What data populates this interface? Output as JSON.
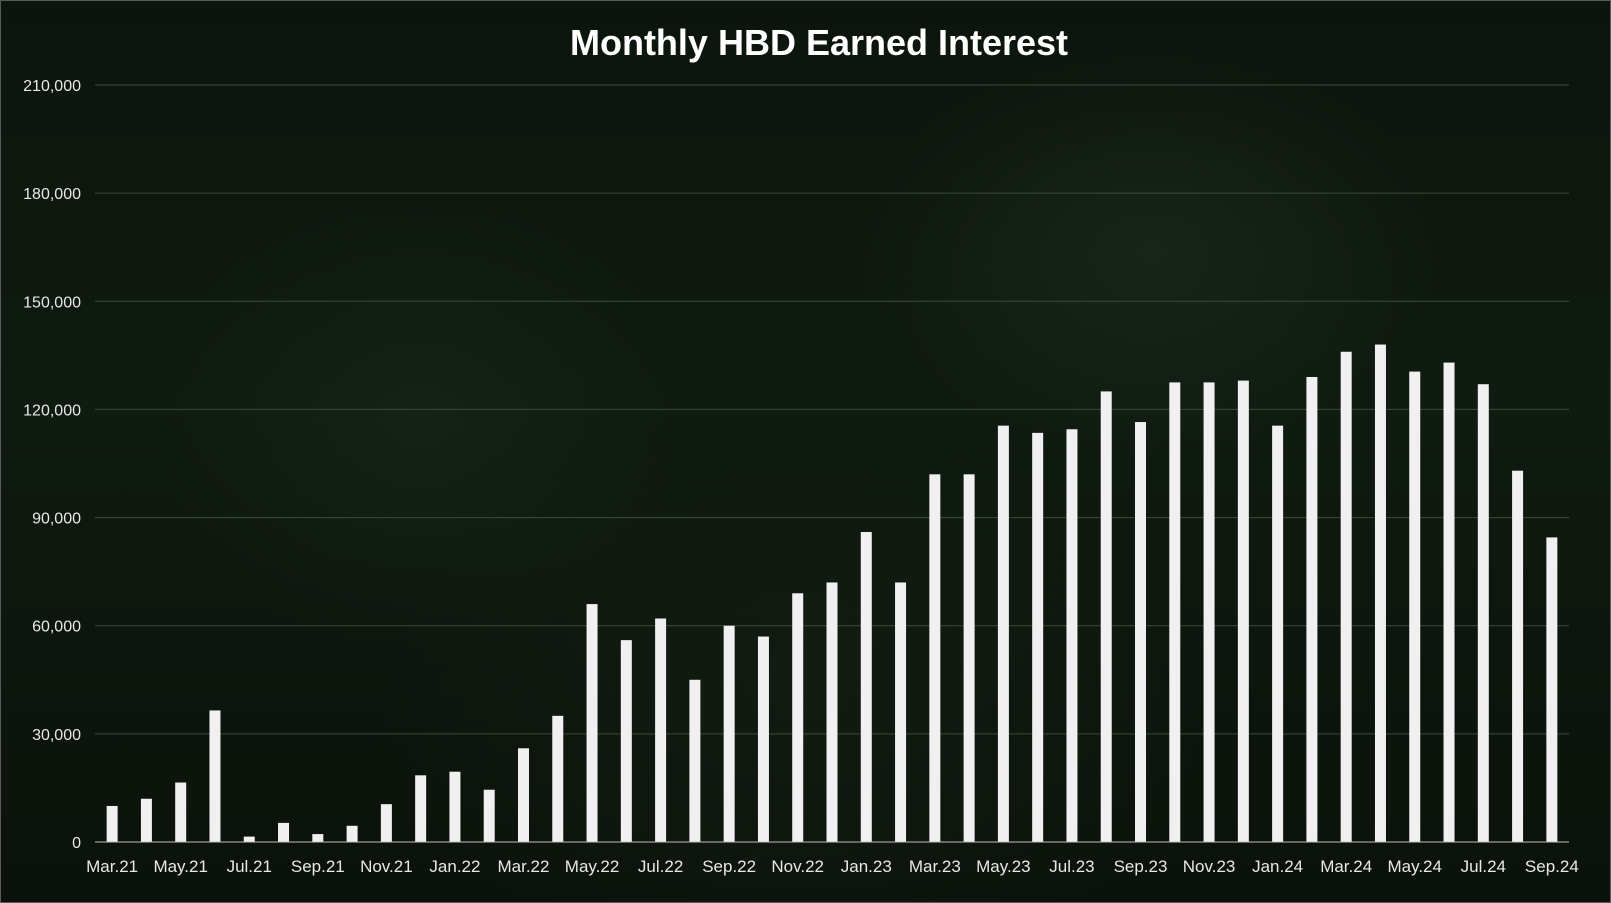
{
  "chart_data": {
    "type": "bar",
    "title": "Monthly HBD Earned Interest",
    "xlabel": "",
    "ylabel": "",
    "ylim": [
      0,
      210000
    ],
    "yticks": [
      0,
      30000,
      60000,
      90000,
      120000,
      150000,
      180000,
      210000
    ],
    "ytick_labels": [
      "0",
      "30,000",
      "60,000",
      "90,000",
      "120,000",
      "150,000",
      "180,000",
      "210,000"
    ],
    "grid": true,
    "legend": "none",
    "bar_color": "#f0f0f0",
    "categories": [
      "Mar.21",
      "Apr.21",
      "May.21",
      "Jun.21",
      "Jul.21",
      "Aug.21",
      "Sep.21",
      "Oct.21",
      "Nov.21",
      "Dec.21",
      "Jan.22",
      "Feb.22",
      "Mar.22",
      "Apr.22",
      "May.22",
      "Jun.22",
      "Jul.22",
      "Aug.22",
      "Sep.22",
      "Oct.22",
      "Nov.22",
      "Dec.22",
      "Jan.23",
      "Feb.23",
      "Mar.23",
      "Apr.23",
      "May.23",
      "Jun.23",
      "Jul.23",
      "Aug.23",
      "Sep.23",
      "Oct.23",
      "Nov.23",
      "Dec.23",
      "Jan.24",
      "Feb.24",
      "Mar.24",
      "Apr.24",
      "May.24",
      "Jun.24",
      "Jul.24",
      "Aug.24",
      "Sep.24"
    ],
    "xtick_labels": [
      "Mar.21",
      "May.21",
      "Jul.21",
      "Sep.21",
      "Nov.21",
      "Jan.22",
      "Mar.22",
      "May.22",
      "Jul.22",
      "Sep.22",
      "Nov.22",
      "Jan.23",
      "Mar.23",
      "May.23",
      "Jul.23",
      "Sep.23",
      "Nov.23",
      "Jan.24",
      "Mar.24",
      "May.24",
      "Jul.24",
      "Sep.24"
    ],
    "values": [
      10000,
      12000,
      16500,
      36500,
      1500,
      5300,
      2200,
      4500,
      10500,
      18500,
      19500,
      14500,
      26000,
      35000,
      66000,
      56000,
      62000,
      45000,
      60000,
      57000,
      69000,
      72000,
      86000,
      72000,
      102000,
      102000,
      115500,
      113500,
      114500,
      125000,
      116500,
      127500,
      127500,
      128000,
      115500,
      129000,
      136000,
      138000,
      130500,
      133000,
      127000,
      103000,
      84500
    ]
  }
}
